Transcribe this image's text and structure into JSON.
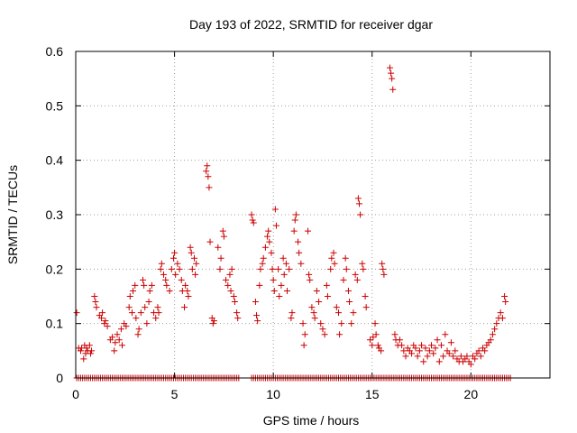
{
  "chart_data": {
    "type": "scatter",
    "title": "Day 193 of 2022, SRMTID for receiver dgar",
    "xlabel": "GPS time / hours",
    "ylabel": "SRMTID / TECUs",
    "xlim": [
      0,
      24
    ],
    "ylim": [
      0,
      0.6
    ],
    "xticks": [
      0,
      5,
      10,
      15,
      20
    ],
    "yticks": [
      0,
      0.1,
      0.2,
      0.3,
      0.4,
      0.5,
      0.6
    ],
    "xtick_labels": [
      "0",
      "5",
      "10",
      "15",
      "20"
    ],
    "ytick_labels": [
      "0",
      "0.1",
      "0.2",
      "0.3",
      "0.4",
      "0.5",
      "0.6"
    ],
    "grid": true,
    "marker": "+",
    "color": "#cc0000",
    "series": [
      {
        "name": "SRMTID",
        "points": [
          [
            0.05,
            0.12
          ],
          [
            0.15,
            0.055
          ],
          [
            0.25,
            0.05
          ],
          [
            0.3,
            0.055
          ],
          [
            0.4,
            0.035
          ],
          [
            0.45,
            0.06
          ],
          [
            0.5,
            0.045
          ],
          [
            0.55,
            0.055
          ],
          [
            0.6,
            0.05
          ],
          [
            0.7,
            0.06
          ],
          [
            0.75,
            0.045
          ],
          [
            0.8,
            0.05
          ],
          [
            0.95,
            0.15
          ],
          [
            1.0,
            0.14
          ],
          [
            1.05,
            0.13
          ],
          [
            1.2,
            0.115
          ],
          [
            1.3,
            0.11
          ],
          [
            1.35,
            0.12
          ],
          [
            1.45,
            0.1
          ],
          [
            1.5,
            0.105
          ],
          [
            1.6,
            0.095
          ],
          [
            1.75,
            0.07
          ],
          [
            1.85,
            0.075
          ],
          [
            1.95,
            0.05
          ],
          [
            2.0,
            0.065
          ],
          [
            2.1,
            0.08
          ],
          [
            2.2,
            0.07
          ],
          [
            2.3,
            0.09
          ],
          [
            2.35,
            0.06
          ],
          [
            2.45,
            0.1
          ],
          [
            2.55,
            0.095
          ],
          [
            2.7,
            0.13
          ],
          [
            2.75,
            0.15
          ],
          [
            2.85,
            0.12
          ],
          [
            2.9,
            0.16
          ],
          [
            3.0,
            0.17
          ],
          [
            3.05,
            0.11
          ],
          [
            3.15,
            0.08
          ],
          [
            3.2,
            0.09
          ],
          [
            3.3,
            0.12
          ],
          [
            3.4,
            0.18
          ],
          [
            3.45,
            0.17
          ],
          [
            3.5,
            0.13
          ],
          [
            3.6,
            0.1
          ],
          [
            3.7,
            0.14
          ],
          [
            3.75,
            0.16
          ],
          [
            3.85,
            0.17
          ],
          [
            3.95,
            0.12
          ],
          [
            4.05,
            0.11
          ],
          [
            4.15,
            0.13
          ],
          [
            4.2,
            0.12
          ],
          [
            4.3,
            0.2
          ],
          [
            4.35,
            0.21
          ],
          [
            4.45,
            0.19
          ],
          [
            4.55,
            0.18
          ],
          [
            4.6,
            0.17
          ],
          [
            4.75,
            0.16
          ],
          [
            4.85,
            0.2
          ],
          [
            4.95,
            0.22
          ],
          [
            5.0,
            0.23
          ],
          [
            5.05,
            0.19
          ],
          [
            5.15,
            0.21
          ],
          [
            5.25,
            0.2
          ],
          [
            5.35,
            0.18
          ],
          [
            5.4,
            0.16
          ],
          [
            5.5,
            0.13
          ],
          [
            5.55,
            0.17
          ],
          [
            5.65,
            0.16
          ],
          [
            5.7,
            0.15
          ],
          [
            5.8,
            0.24
          ],
          [
            5.85,
            0.23
          ],
          [
            5.9,
            0.2
          ],
          [
            6.0,
            0.22
          ],
          [
            6.05,
            0.19
          ],
          [
            6.1,
            0.21
          ],
          [
            6.6,
            0.38
          ],
          [
            6.65,
            0.39
          ],
          [
            6.7,
            0.37
          ],
          [
            6.75,
            0.35
          ],
          [
            6.8,
            0.25
          ],
          [
            6.9,
            0.11
          ],
          [
            6.95,
            0.1
          ],
          [
            7.0,
            0.105
          ],
          [
            7.2,
            0.24
          ],
          [
            7.3,
            0.2
          ],
          [
            7.35,
            0.22
          ],
          [
            7.45,
            0.27
          ],
          [
            7.5,
            0.26
          ],
          [
            7.6,
            0.18
          ],
          [
            7.7,
            0.17
          ],
          [
            7.8,
            0.19
          ],
          [
            7.85,
            0.16
          ],
          [
            7.9,
            0.2
          ],
          [
            8.0,
            0.15
          ],
          [
            8.05,
            0.14
          ],
          [
            8.15,
            0.12
          ],
          [
            8.2,
            0.11
          ],
          [
            8.9,
            0.3
          ],
          [
            8.95,
            0.29
          ],
          [
            9.0,
            0.285
          ],
          [
            9.1,
            0.14
          ],
          [
            9.15,
            0.115
          ],
          [
            9.2,
            0.105
          ],
          [
            9.3,
            0.17
          ],
          [
            9.35,
            0.2
          ],
          [
            9.45,
            0.21
          ],
          [
            9.5,
            0.22
          ],
          [
            9.6,
            0.24
          ],
          [
            9.7,
            0.26
          ],
          [
            9.75,
            0.27
          ],
          [
            9.8,
            0.25
          ],
          [
            9.9,
            0.23
          ],
          [
            9.95,
            0.2
          ],
          [
            10.0,
            0.18
          ],
          [
            10.05,
            0.16
          ],
          [
            10.1,
            0.31
          ],
          [
            10.15,
            0.28
          ],
          [
            10.25,
            0.2
          ],
          [
            10.3,
            0.15
          ],
          [
            10.4,
            0.17
          ],
          [
            10.5,
            0.22
          ],
          [
            10.55,
            0.19
          ],
          [
            10.65,
            0.21
          ],
          [
            10.7,
            0.16
          ],
          [
            10.8,
            0.2
          ],
          [
            10.9,
            0.11
          ],
          [
            10.95,
            0.12
          ],
          [
            11.05,
            0.27
          ],
          [
            11.1,
            0.29
          ],
          [
            11.15,
            0.3
          ],
          [
            11.25,
            0.25
          ],
          [
            11.3,
            0.23
          ],
          [
            11.4,
            0.21
          ],
          [
            11.5,
            0.1
          ],
          [
            11.55,
            0.06
          ],
          [
            11.6,
            0.08
          ],
          [
            11.75,
            0.27
          ],
          [
            11.8,
            0.19
          ],
          [
            11.85,
            0.18
          ],
          [
            11.95,
            0.13
          ],
          [
            12.05,
            0.12
          ],
          [
            12.1,
            0.11
          ],
          [
            12.2,
            0.16
          ],
          [
            12.3,
            0.14
          ],
          [
            12.4,
            0.1
          ],
          [
            12.5,
            0.09
          ],
          [
            12.6,
            0.08
          ],
          [
            12.7,
            0.17
          ],
          [
            12.75,
            0.15
          ],
          [
            12.9,
            0.2
          ],
          [
            12.95,
            0.22
          ],
          [
            13.05,
            0.23
          ],
          [
            13.1,
            0.21
          ],
          [
            13.2,
            0.13
          ],
          [
            13.3,
            0.12
          ],
          [
            13.35,
            0.08
          ],
          [
            13.45,
            0.1
          ],
          [
            13.55,
            0.18
          ],
          [
            13.65,
            0.22
          ],
          [
            13.7,
            0.2
          ],
          [
            13.8,
            0.16
          ],
          [
            13.85,
            0.14
          ],
          [
            13.95,
            0.1
          ],
          [
            14.05,
            0.12
          ],
          [
            14.15,
            0.19
          ],
          [
            14.25,
            0.18
          ],
          [
            14.3,
            0.33
          ],
          [
            14.35,
            0.32
          ],
          [
            14.4,
            0.3
          ],
          [
            14.5,
            0.21
          ],
          [
            14.55,
            0.2
          ],
          [
            14.65,
            0.15
          ],
          [
            14.7,
            0.13
          ],
          [
            14.9,
            0.07
          ],
          [
            15.0,
            0.06
          ],
          [
            15.05,
            0.075
          ],
          [
            15.15,
            0.1
          ],
          [
            15.2,
            0.08
          ],
          [
            15.3,
            0.06
          ],
          [
            15.35,
            0.055
          ],
          [
            15.45,
            0.05
          ],
          [
            15.5,
            0.21
          ],
          [
            15.55,
            0.2
          ],
          [
            15.6,
            0.19
          ],
          [
            15.9,
            0.57
          ],
          [
            15.95,
            0.56
          ],
          [
            16.0,
            0.55
          ],
          [
            16.05,
            0.53
          ],
          [
            16.15,
            0.08
          ],
          [
            16.2,
            0.07
          ],
          [
            16.3,
            0.06
          ],
          [
            16.4,
            0.07
          ],
          [
            16.5,
            0.06
          ],
          [
            16.6,
            0.05
          ],
          [
            16.7,
            0.04
          ],
          [
            16.8,
            0.055
          ],
          [
            16.9,
            0.05
          ],
          [
            17.0,
            0.045
          ],
          [
            17.1,
            0.06
          ],
          [
            17.2,
            0.055
          ],
          [
            17.3,
            0.04
          ],
          [
            17.4,
            0.05
          ],
          [
            17.5,
            0.06
          ],
          [
            17.6,
            0.03
          ],
          [
            17.7,
            0.055
          ],
          [
            17.8,
            0.04
          ],
          [
            17.9,
            0.05
          ],
          [
            18.0,
            0.06
          ],
          [
            18.1,
            0.045
          ],
          [
            18.2,
            0.055
          ],
          [
            18.3,
            0.07
          ],
          [
            18.4,
            0.03
          ],
          [
            18.5,
            0.06
          ],
          [
            18.6,
            0.04
          ],
          [
            18.7,
            0.08
          ],
          [
            18.8,
            0.05
          ],
          [
            18.9,
            0.045
          ],
          [
            19.0,
            0.065
          ],
          [
            19.1,
            0.04
          ],
          [
            19.2,
            0.05
          ],
          [
            19.3,
            0.035
          ],
          [
            19.4,
            0.03
          ],
          [
            19.5,
            0.04
          ],
          [
            19.6,
            0.03
          ],
          [
            19.7,
            0.035
          ],
          [
            19.8,
            0.04
          ],
          [
            19.9,
            0.03
          ],
          [
            20.0,
            0.025
          ],
          [
            20.1,
            0.04
          ],
          [
            20.2,
            0.035
          ],
          [
            20.3,
            0.045
          ],
          [
            20.4,
            0.05
          ],
          [
            20.5,
            0.04
          ],
          [
            20.6,
            0.055
          ],
          [
            20.7,
            0.05
          ],
          [
            20.8,
            0.06
          ],
          [
            20.9,
            0.065
          ],
          [
            21.0,
            0.07
          ],
          [
            21.1,
            0.08
          ],
          [
            21.2,
            0.09
          ],
          [
            21.3,
            0.1
          ],
          [
            21.4,
            0.11
          ],
          [
            21.5,
            0.12
          ],
          [
            21.6,
            0.11
          ],
          [
            21.7,
            0.15
          ],
          [
            21.75,
            0.14
          ]
        ]
      }
    ],
    "zero_band": {
      "segments": [
        [
          0.05,
          2.6
        ],
        [
          2.65,
          8.3
        ],
        [
          8.9,
          14.9
        ],
        [
          15.0,
          16.1
        ],
        [
          16.2,
          22.0
        ]
      ],
      "value": 0
    }
  }
}
